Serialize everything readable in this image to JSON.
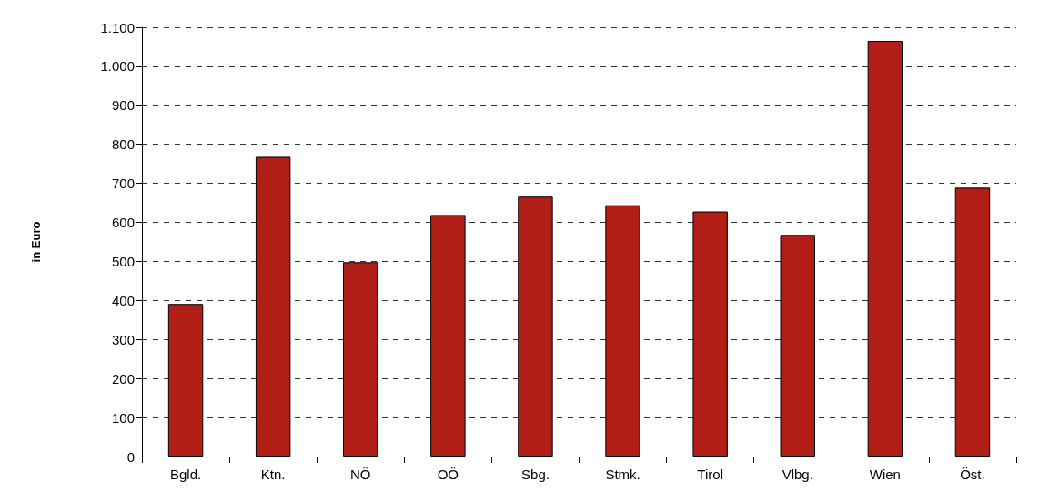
{
  "chart_data": {
    "type": "bar",
    "ylabel": "in Euro",
    "categories": [
      "Bgld.",
      "Ktn.",
      "NÖ",
      "OÖ",
      "Sbg.",
      "Stmk.",
      "Tirol",
      "Vlbg.",
      "Wien",
      "Öst."
    ],
    "values": [
      391,
      768,
      498,
      619,
      666,
      644,
      628,
      568,
      1065,
      689
    ],
    "color": "#b01e16",
    "ylim": [
      0,
      1100
    ],
    "yticks": [
      0,
      100,
      200,
      300,
      400,
      500,
      600,
      700,
      800,
      900,
      {
        "value": 1000,
        "label": "1.000"
      },
      {
        "value": 1100,
        "label": "1.100"
      }
    ],
    "grid": "y"
  }
}
